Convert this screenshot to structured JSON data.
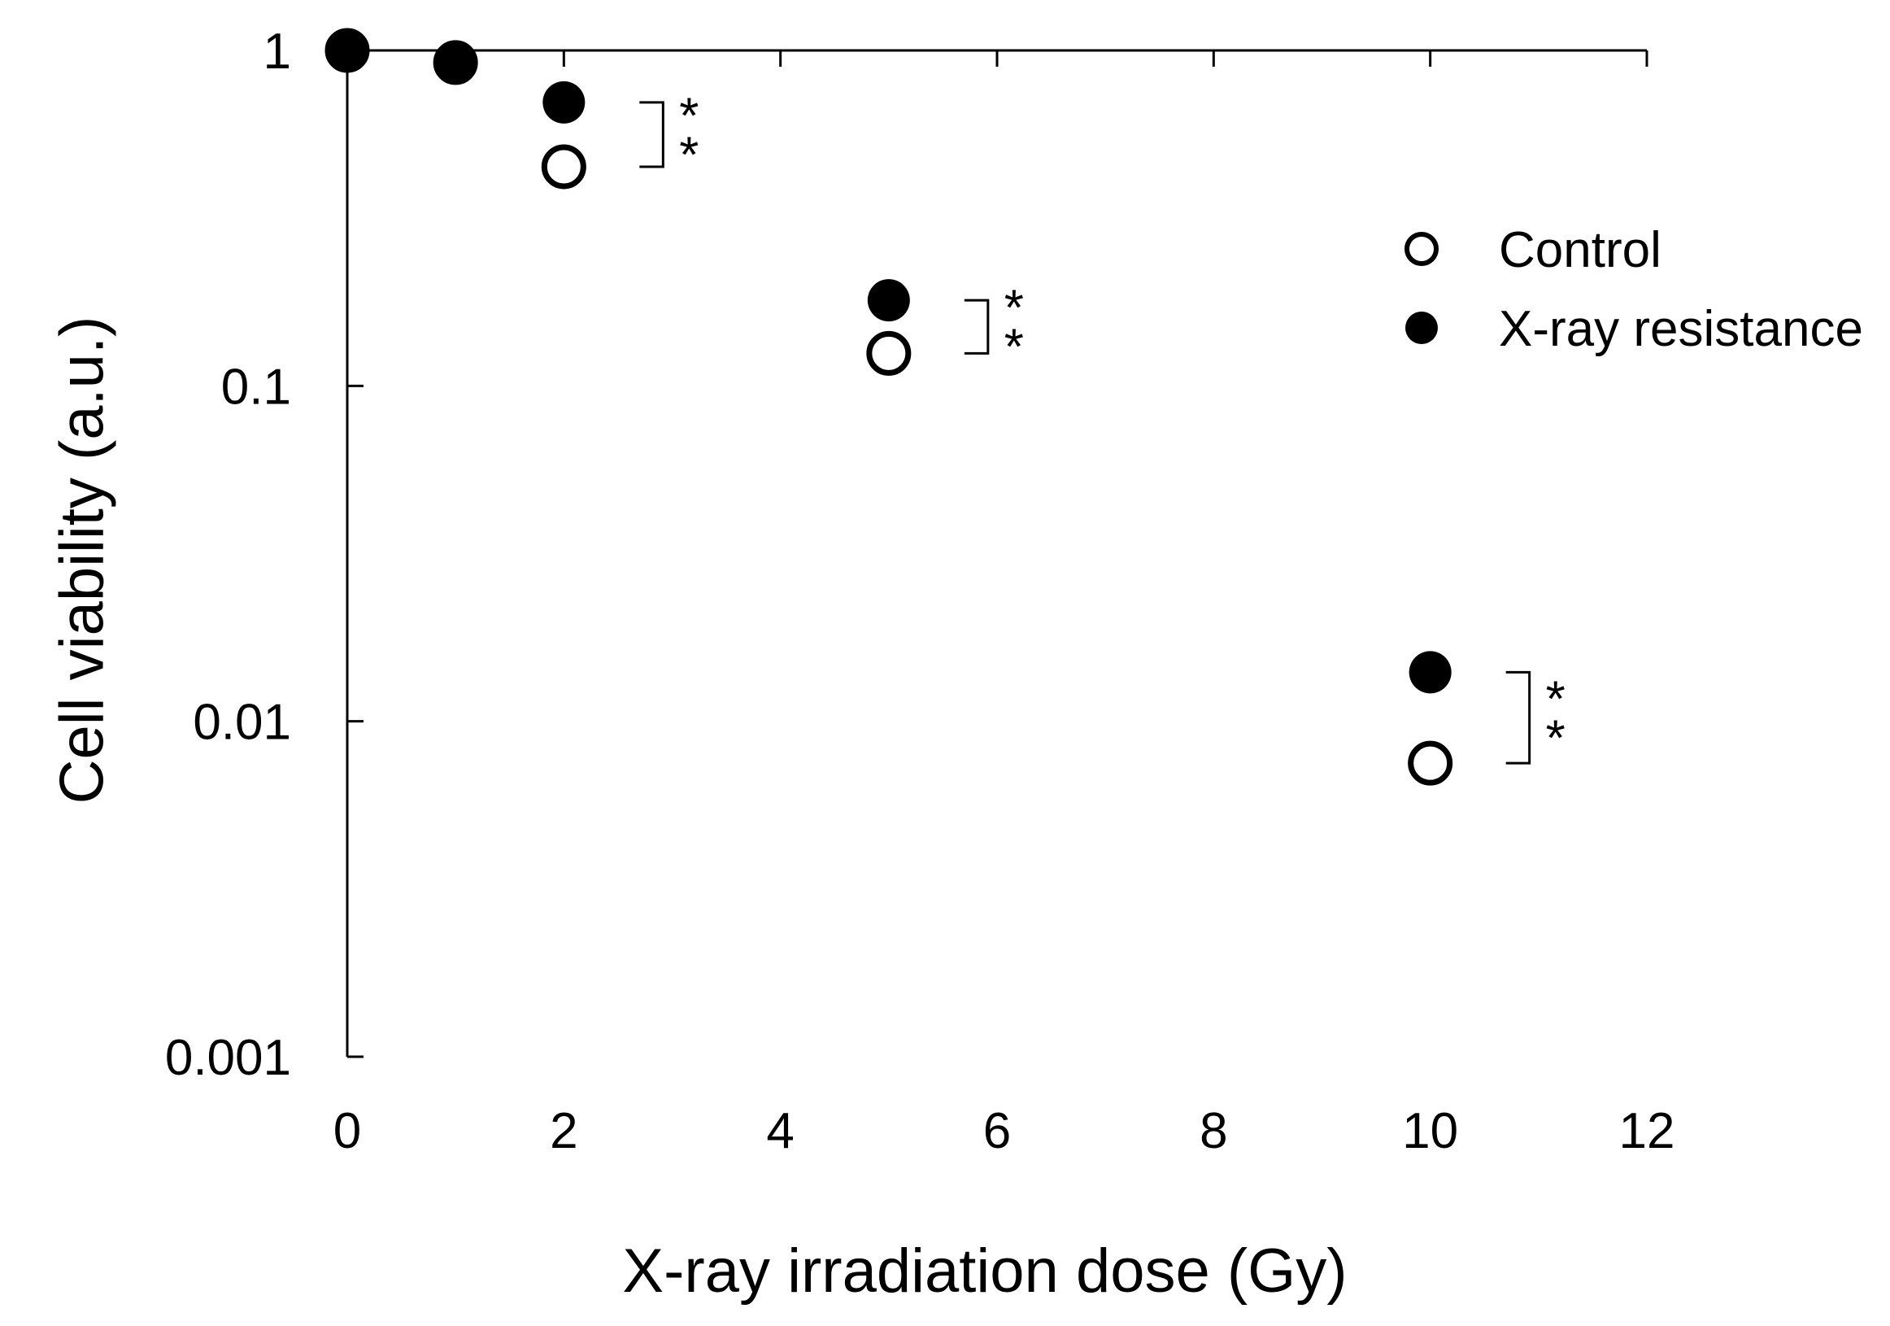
{
  "chart_data": {
    "type": "scatter",
    "xlabel": "X-ray irradiation dose (Gy)",
    "ylabel": "Cell viability (a.u.)",
    "xlim": [
      0,
      12
    ],
    "ylim": [
      0.001,
      1
    ],
    "yscale": "log",
    "grid": false,
    "legend_position": "top-right",
    "x_ticks": [
      0,
      2,
      4,
      6,
      8,
      10,
      12
    ],
    "x_tick_labels": [
      "0",
      "2",
      "4",
      "6",
      "8",
      "10",
      "12"
    ],
    "y_ticks": [
      1,
      0.1,
      0.01,
      0.001
    ],
    "y_tick_labels": [
      "1",
      "0.1",
      "0.01",
      "0.001"
    ],
    "series": [
      {
        "name": "Control",
        "marker": "open-circle",
        "color": "#000000",
        "x": [
          0,
          1,
          2,
          5,
          10
        ],
        "y": [
          1.0,
          0.92,
          0.45,
          0.125,
          0.0075
        ]
      },
      {
        "name": "X-ray resistance",
        "marker": "filled-circle",
        "color": "#000000",
        "x": [
          0,
          1,
          2,
          5,
          10
        ],
        "y": [
          1.0,
          0.92,
          0.7,
          0.18,
          0.014
        ]
      }
    ],
    "annotations": [
      {
        "text": "**",
        "x": 2,
        "y_top": 0.7,
        "y_bottom": 0.45
      },
      {
        "text": "**",
        "x": 5,
        "y_top": 0.18,
        "y_bottom": 0.125
      },
      {
        "text": "**",
        "x": 10,
        "y_top": 0.014,
        "y_bottom": 0.0075
      }
    ]
  }
}
